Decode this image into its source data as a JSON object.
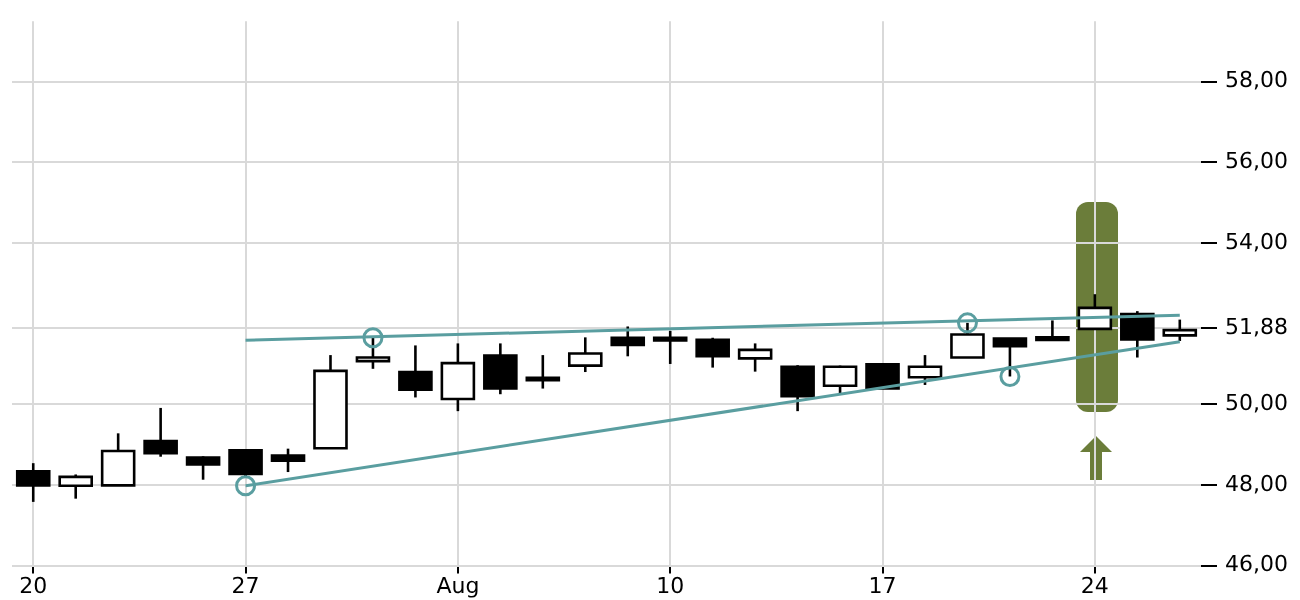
{
  "chart_data": {
    "type": "candlestick",
    "categories": [
      "20",
      null,
      null,
      null,
      null,
      "27",
      null,
      null,
      null,
      null,
      "Aug",
      null,
      null,
      null,
      null,
      "10",
      null,
      null,
      null,
      null,
      "17",
      null,
      null,
      null,
      null,
      "24",
      null,
      null
    ],
    "ohlc": [
      [
        48.34,
        48.54,
        47.58,
        47.99
      ],
      [
        47.98,
        48.26,
        47.66,
        48.2
      ],
      [
        47.99,
        49.28,
        47.99,
        48.84
      ],
      [
        49.09,
        49.91,
        48.7,
        48.79
      ],
      [
        48.68,
        48.71,
        48.13,
        48.51
      ],
      [
        48.86,
        48.86,
        48.18,
        48.27
      ],
      [
        48.73,
        48.9,
        48.32,
        48.6
      ],
      [
        48.91,
        51.22,
        48.91,
        50.83
      ],
      [
        51.07,
        51.69,
        50.88,
        51.16
      ],
      [
        50.8,
        51.46,
        50.17,
        50.36
      ],
      [
        50.13,
        51.51,
        49.83,
        51.02
      ],
      [
        51.21,
        51.51,
        50.25,
        50.39
      ],
      [
        50.66,
        51.22,
        50.39,
        50.62
      ],
      [
        50.96,
        51.66,
        50.8,
        51.26
      ],
      [
        51.65,
        51.93,
        51.19,
        51.47
      ],
      [
        51.65,
        51.82,
        51,
        51.61
      ],
      [
        51.6,
        51.65,
        50.91,
        51.19
      ],
      [
        51.14,
        51.51,
        50.81,
        51.35
      ],
      [
        50.93,
        50.97,
        49.83,
        50.2
      ],
      [
        50.46,
        50.96,
        50.25,
        50.93
      ],
      [
        50.99,
        51.02,
        50.39,
        50.39
      ],
      [
        50.67,
        51.22,
        50.48,
        50.93
      ],
      [
        51.16,
        52.02,
        51.16,
        51.73
      ],
      [
        51.63,
        51.63,
        50.69,
        51.44
      ],
      [
        51.66,
        52.08,
        51.64,
        51.64
      ],
      [
        51.87,
        52.73,
        51.87,
        52.39
      ],
      [
        52.24,
        52.31,
        51.16,
        51.61
      ],
      [
        51.71,
        52.1,
        51.57,
        51.84
      ]
    ],
    "series": [
      {
        "type": "line",
        "color": "#5a9ea0",
        "marker": "none",
        "values": [
          null,
          null,
          null,
          null,
          null,
          51.59,
          null,
          null,
          null,
          null,
          null,
          null,
          null,
          null,
          null,
          null,
          null,
          null,
          null,
          null,
          null,
          null,
          null,
          null,
          null,
          null,
          null,
          52.21
        ]
      },
      {
        "type": "line",
        "color": "#5a9ea0",
        "marker": "none",
        "values": [
          null,
          null,
          null,
          null,
          null,
          47.98,
          null,
          null,
          null,
          null,
          null,
          null,
          null,
          null,
          null,
          null,
          null,
          null,
          null,
          null,
          null,
          null,
          null,
          null,
          null,
          null,
          null,
          51.55
        ]
      },
      {
        "type": "scatter",
        "color": "#5a9ea0",
        "marker": "circle",
        "values": [
          null,
          null,
          null,
          null,
          null,
          47.98,
          null,
          null,
          51.65,
          null,
          null,
          null,
          null,
          null,
          null,
          null,
          null,
          null,
          null,
          null,
          null,
          null,
          52.02,
          50.69,
          null,
          null,
          null,
          null
        ]
      }
    ],
    "ylim": [
      46,
      59.5
    ],
    "yticks": [
      {
        "value": 46,
        "label": "46,00"
      },
      {
        "value": 48,
        "label": "48,00"
      },
      {
        "value": 50,
        "label": "50,00"
      },
      {
        "value": 51.88,
        "label": "51,88"
      },
      {
        "value": 54,
        "label": "54,00"
      },
      {
        "value": 56,
        "label": "56,00"
      },
      {
        "value": 58,
        "label": "58,00"
      }
    ],
    "grid": true,
    "legend": false
  }
}
